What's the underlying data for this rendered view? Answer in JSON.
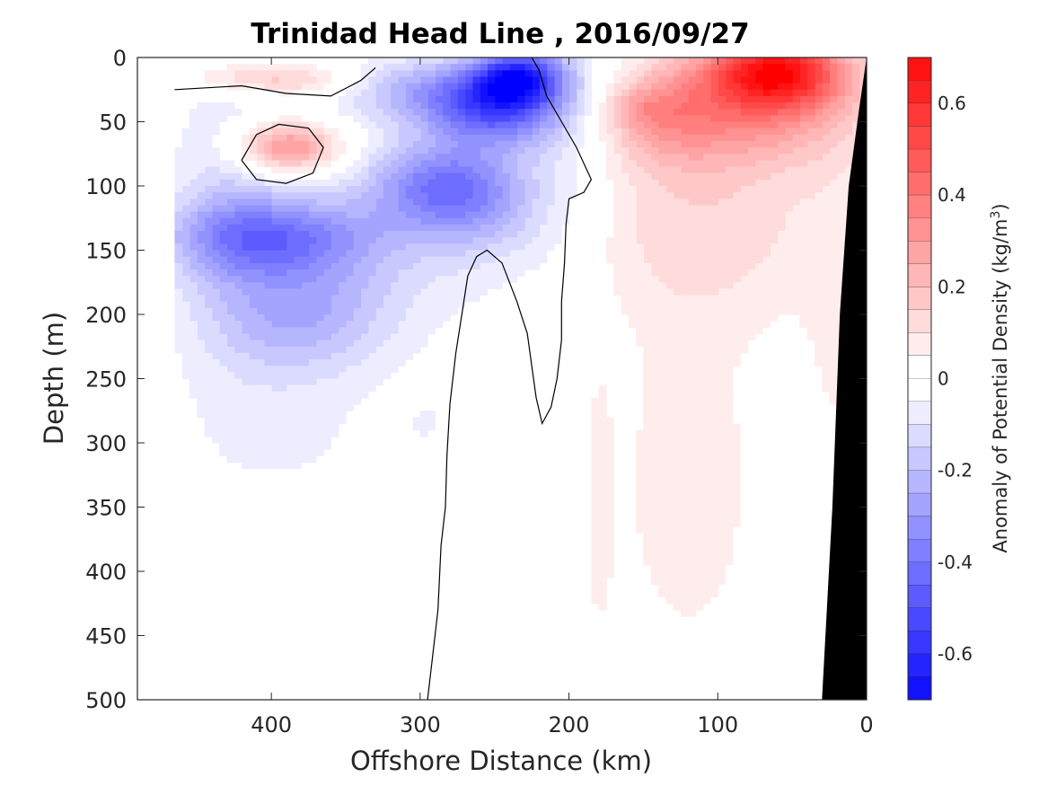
{
  "chart_data": {
    "type": "heatmap",
    "title": "Trinidad Head Line , 2016/09/27",
    "xlabel": "Offshore Distance (km)",
    "ylabel": "Depth (m)",
    "xlim": [
      490,
      0
    ],
    "ylim": [
      0,
      500
    ],
    "x_reversed": true,
    "y_reversed": true,
    "x_ticks": [
      400,
      300,
      200,
      100,
      0
    ],
    "y_ticks": [
      0,
      50,
      100,
      150,
      200,
      250,
      300,
      350,
      400,
      450,
      500
    ],
    "colorbar": {
      "label_main": "Anomaly of Potential Density (kg/m",
      "label_sup": "3",
      "label_close": ")",
      "range": [
        -0.7,
        0.7
      ],
      "step": 0.05,
      "ticks": [
        0.6,
        0.4,
        0.2,
        0,
        -0.2,
        -0.4,
        -0.6
      ],
      "tick_labels": [
        "0.6",
        "0.4",
        "0.2",
        "0",
        "-0.2",
        "-0.4",
        "-0.6"
      ],
      "negative_color": "#0000ff",
      "positive_color": "#ff0000",
      "zero_color": "#ffffff"
    },
    "features": {
      "data_x_range_km": [
        0,
        465
      ],
      "bathymetry_color": "#000000",
      "zero_contour_color": "#000000",
      "anomaly_blobs": [
        {
          "x": 390,
          "depth": 70,
          "value": 0.35,
          "rx": 35,
          "rdepth": 20
        },
        {
          "x": 410,
          "depth": 15,
          "value": 0.15,
          "rx": 50,
          "rdepth": 12
        },
        {
          "x": 370,
          "depth": 20,
          "value": 0.08,
          "rx": 50,
          "rdepth": 15
        },
        {
          "x": 235,
          "depth": 15,
          "value": -0.5,
          "rx": 30,
          "rdepth": 22
        },
        {
          "x": 250,
          "depth": 40,
          "value": -0.4,
          "rx": 45,
          "rdepth": 28
        },
        {
          "x": 300,
          "depth": 25,
          "value": -0.22,
          "rx": 60,
          "rdepth": 25
        },
        {
          "x": 290,
          "depth": 100,
          "value": -0.3,
          "rx": 45,
          "rdepth": 35
        },
        {
          "x": 255,
          "depth": 110,
          "value": -0.16,
          "rx": 40,
          "rdepth": 45
        },
        {
          "x": 400,
          "depth": 140,
          "value": -0.32,
          "rx": 65,
          "rdepth": 30
        },
        {
          "x": 380,
          "depth": 200,
          "value": -0.2,
          "rx": 55,
          "rdepth": 45
        },
        {
          "x": 330,
          "depth": 150,
          "value": -0.1,
          "rx": 90,
          "rdepth": 70
        },
        {
          "x": 395,
          "depth": 290,
          "value": -0.06,
          "rx": 75,
          "rdepth": 65
        },
        {
          "x": 430,
          "depth": 120,
          "value": -0.12,
          "rx": 40,
          "rdepth": 110
        },
        {
          "x": 200,
          "depth": 20,
          "value": -0.07,
          "rx": 40,
          "rdepth": 60
        },
        {
          "x": 200,
          "depth": 110,
          "value": -0.06,
          "rx": 35,
          "rdepth": 80
        },
        {
          "x": 295,
          "depth": 285,
          "value": -0.05,
          "rx": 15,
          "rdepth": 15
        },
        {
          "x": 395,
          "depth": 440,
          "value": -0.04,
          "rx": 12,
          "rdepth": 12
        },
        {
          "x": 60,
          "depth": 10,
          "value": 0.55,
          "rx": 45,
          "rdepth": 28
        },
        {
          "x": 80,
          "depth": 40,
          "value": 0.3,
          "rx": 75,
          "rdepth": 45
        },
        {
          "x": 140,
          "depth": 45,
          "value": 0.15,
          "rx": 40,
          "rdepth": 40
        },
        {
          "x": 110,
          "depth": 130,
          "value": 0.12,
          "rx": 90,
          "rdepth": 70
        },
        {
          "x": 120,
          "depth": 330,
          "value": 0.07,
          "rx": 60,
          "rdepth": 180
        },
        {
          "x": 20,
          "depth": 220,
          "value": 0.05,
          "rx": 25,
          "rdepth": 160
        },
        {
          "x": 180,
          "depth": 350,
          "value": 0.05,
          "rx": 10,
          "rdepth": 120
        },
        {
          "x": 260,
          "depth": 470,
          "value": 0.05,
          "rx": 15,
          "rdepth": 40
        },
        {
          "x": 155,
          "depth": 40,
          "value": 0.08,
          "rx": 25,
          "rdepth": 15
        }
      ]
    }
  }
}
